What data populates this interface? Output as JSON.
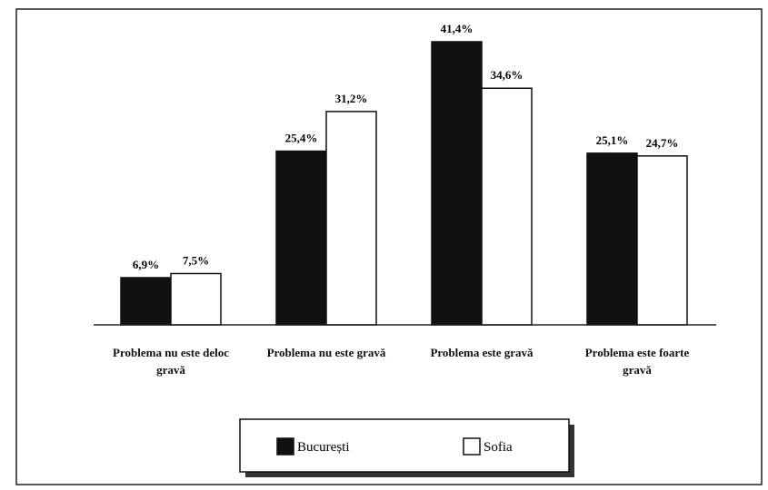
{
  "chart_data": {
    "type": "bar",
    "categories": [
      "Problema nu este deloc gravă",
      "Problema nu este gravă",
      "Problema este gravă",
      "Problema este foarte gravă"
    ],
    "series": [
      {
        "name": "București",
        "color": "#111111",
        "values": [
          6.9,
          25.4,
          41.4,
          25.1
        ],
        "value_labels": [
          "6,9%",
          "25,4%",
          "41,4%",
          "25,1%"
        ]
      },
      {
        "name": "Sofia",
        "color": "#ffffff",
        "values": [
          7.5,
          31.2,
          34.6,
          24.7
        ],
        "value_labels": [
          "7,5%",
          "31,2%",
          "34,6%",
          "24,7%"
        ]
      }
    ],
    "legend": "bottom"
  }
}
